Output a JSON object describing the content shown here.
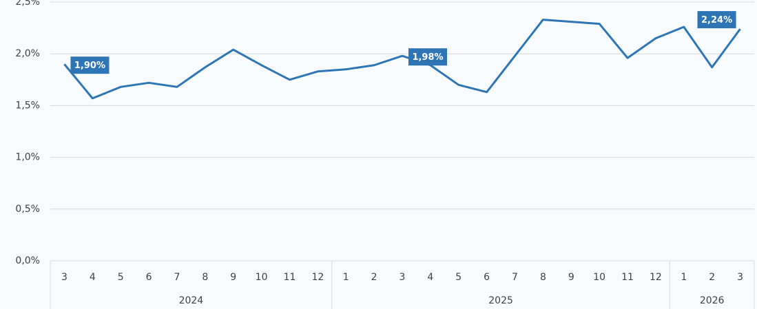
{
  "chart_data": {
    "type": "line",
    "category_groups": [
      {
        "name": "2024",
        "categories": [
          "3",
          "4",
          "5",
          "6",
          "7",
          "8",
          "9",
          "10",
          "11",
          "12"
        ]
      },
      {
        "name": "2025",
        "categories": [
          "1",
          "2",
          "3",
          "4",
          "5",
          "6",
          "7",
          "8",
          "9",
          "10",
          "11",
          "12"
        ]
      },
      {
        "name": "2026",
        "categories": [
          "1",
          "2",
          "3"
        ]
      }
    ],
    "series": [
      {
        "color": "#2e75b6",
        "values": [
          1.9,
          1.57,
          1.68,
          1.72,
          1.68,
          1.87,
          2.04,
          1.89,
          1.75,
          1.83,
          1.85,
          1.89,
          1.98,
          1.89,
          1.7,
          1.63,
          1.98,
          2.33,
          2.31,
          2.29,
          1.96,
          2.15,
          2.26,
          1.87,
          2.24
        ],
        "value_labels": [
          "1,90%",
          null,
          null,
          null,
          null,
          null,
          null,
          null,
          null,
          null,
          null,
          null,
          "1,98%",
          null,
          null,
          null,
          null,
          null,
          null,
          null,
          null,
          null,
          null,
          null,
          "2,24%"
        ]
      }
    ],
    "ylim": [
      0,
      2.5
    ],
    "yticks": [
      {
        "value": 0,
        "label": "0,0%"
      },
      {
        "value": 0.5,
        "label": "0,5%"
      },
      {
        "value": 1,
        "label": "1,0%"
      },
      {
        "value": 1.5,
        "label": "1,5%"
      },
      {
        "value": 2,
        "label": "2,0%"
      },
      {
        "value": 2.5,
        "label": "2,5%"
      }
    ],
    "grid": true
  }
}
